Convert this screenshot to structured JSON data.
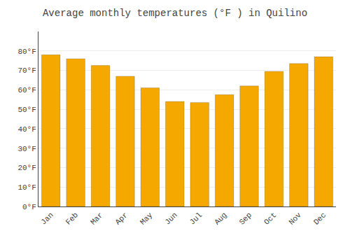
{
  "chart_data": {
    "type": "bar",
    "title": "Average monthly temperatures (°F ) in Quilino",
    "categories": [
      "Jan",
      "Feb",
      "Mar",
      "Apr",
      "May",
      "Jun",
      "Jul",
      "Aug",
      "Sep",
      "Oct",
      "Nov",
      "Dec"
    ],
    "values": [
      78,
      76,
      72.5,
      67,
      61,
      54,
      53.5,
      57.5,
      62,
      69.5,
      73.5,
      77
    ],
    "color": "#F5A800",
    "ylim": [
      0,
      90
    ],
    "yticks": [
      {
        "value": 0,
        "label": "0°F"
      },
      {
        "value": 10,
        "label": "10°F"
      },
      {
        "value": 20,
        "label": "20°F"
      },
      {
        "value": 30,
        "label": "30°F"
      },
      {
        "value": 40,
        "label": "40°F"
      },
      {
        "value": 50,
        "label": "50°F"
      },
      {
        "value": 60,
        "label": "60°F"
      },
      {
        "value": 70,
        "label": "70°F"
      },
      {
        "value": 80,
        "label": "80°F"
      }
    ],
    "grid": true
  }
}
